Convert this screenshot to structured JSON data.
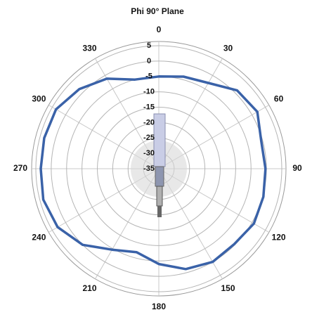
{
  "chart_data": {
    "type": "polar",
    "title": "Phi 90° Plane",
    "theta": [
      0,
      15,
      30,
      45,
      60,
      75,
      90,
      105,
      120,
      135,
      150,
      165,
      180,
      195,
      210,
      225,
      240,
      255,
      270,
      285,
      300,
      315,
      330,
      345
    ],
    "values": [
      -5,
      -4,
      -2.8,
      1,
      2,
      -0.5,
      -0.3,
      0.2,
      0.7,
      -0.3,
      0,
      -1.2,
      -4,
      -6.9,
      -4.6,
      0,
      3,
      3.9,
      3.4,
      3.6,
      3.6,
      1.6,
      -1.2,
      -5
    ],
    "color": "#3a62a8",
    "rlim": [
      -35,
      5
    ],
    "rticks": [
      5,
      0,
      -5,
      -10,
      -15,
      -20,
      -25,
      -30,
      -35
    ],
    "thetaticks": [
      0,
      30,
      60,
      90,
      120,
      150,
      180,
      210,
      240,
      270,
      300,
      330
    ],
    "grid": true
  }
}
